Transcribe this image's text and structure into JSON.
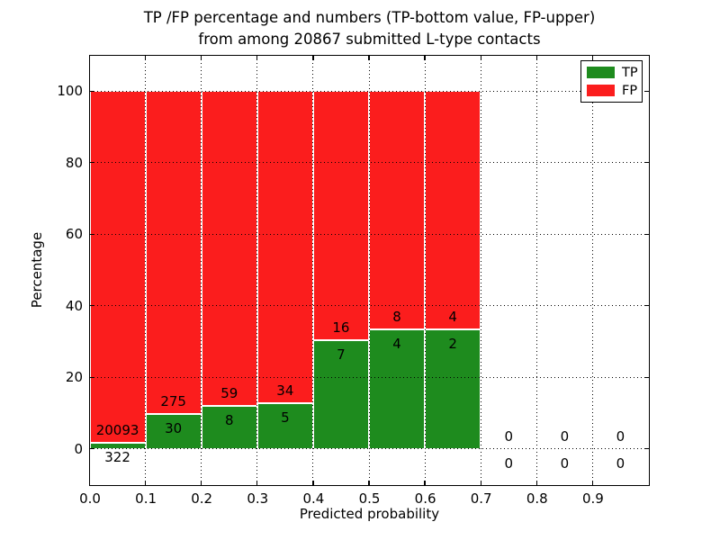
{
  "chart_data": {
    "type": "bar",
    "stacked": true,
    "title_line1": "TP /FP percentage and numbers (TP-bottom value, FP-upper)",
    "title_line2": "from among 20867 submitted L-type contacts",
    "xlabel": "Predicted probability",
    "ylabel": "Percentage",
    "xlim": [
      0.0,
      1.0
    ],
    "ylim": [
      -10,
      110
    ],
    "grid": true,
    "x_tick_labels": [
      "0.0",
      "0.1",
      "0.2",
      "0.3",
      "0.4",
      "0.5",
      "0.6",
      "0.7",
      "0.8",
      "0.9"
    ],
    "x_tick_values": [
      0.0,
      0.1,
      0.2,
      0.3,
      0.4,
      0.5,
      0.6,
      0.7,
      0.8,
      0.9
    ],
    "y_tick_values": [
      0,
      20,
      40,
      60,
      80,
      100
    ],
    "unit": "percent of bin total (TP% bottom green, FP% upper red, stacking to 100)",
    "bins": [
      {
        "x0": 0.0,
        "x1": 0.1,
        "tp": 322,
        "fp": 20093
      },
      {
        "x0": 0.1,
        "x1": 0.2,
        "tp": 30,
        "fp": 275
      },
      {
        "x0": 0.2,
        "x1": 0.3,
        "tp": 8,
        "fp": 59
      },
      {
        "x0": 0.3,
        "x1": 0.4,
        "tp": 5,
        "fp": 34
      },
      {
        "x0": 0.4,
        "x1": 0.5,
        "tp": 7,
        "fp": 16
      },
      {
        "x0": 0.5,
        "x1": 0.6,
        "tp": 4,
        "fp": 8
      },
      {
        "x0": 0.6,
        "x1": 0.7,
        "tp": 2,
        "fp": 4
      },
      {
        "x0": 0.7,
        "x1": 0.8,
        "tp": 0,
        "fp": 0
      },
      {
        "x0": 0.8,
        "x1": 0.9,
        "tp": 0,
        "fp": 0
      },
      {
        "x0": 0.9,
        "x1": 1.0,
        "tp": 0,
        "fp": 0
      }
    ],
    "legend": {
      "position": "upper right",
      "items": [
        {
          "label": "TP",
          "color": "#1e8b1e"
        },
        {
          "label": "FP",
          "color": "#fb1d1d"
        }
      ]
    },
    "colors": {
      "tp": "#1e8b1e",
      "fp": "#fb1d1d",
      "grid": "#000000",
      "text": "#000000"
    }
  }
}
